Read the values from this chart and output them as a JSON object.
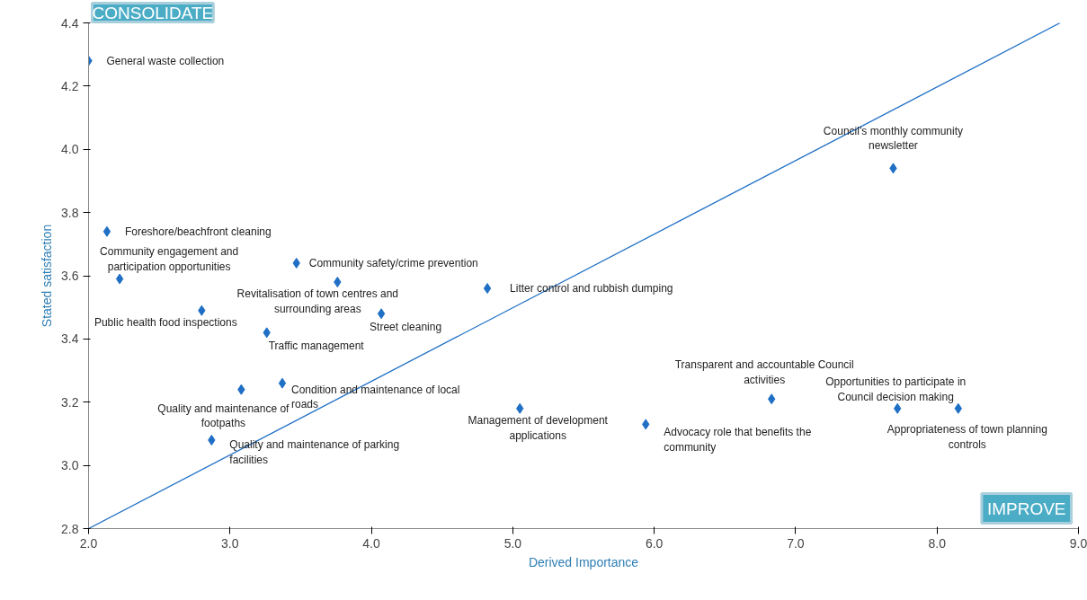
{
  "chart_data": {
    "type": "scatter",
    "xlabel": "Derived Importance",
    "ylabel": "Stated satisfaction",
    "xlim": [
      2.0,
      9.0
    ],
    "ylim": [
      2.8,
      4.4
    ],
    "xticks": [
      {
        "value": 2,
        "label": "2.0"
      },
      {
        "value": 3,
        "label": "3.0"
      },
      {
        "value": 4,
        "label": "4.0"
      },
      {
        "value": 5,
        "label": "5.0"
      },
      {
        "value": 6,
        "label": "6.0"
      },
      {
        "value": 7,
        "label": "7.0"
      },
      {
        "value": 8,
        "label": "8.0"
      },
      {
        "value": 9,
        "label": "9.0"
      }
    ],
    "yticks": [
      {
        "value": 2.8,
        "label": "2.8"
      },
      {
        "value": 3.0,
        "label": "3.0"
      },
      {
        "value": 3.2,
        "label": "3.2"
      },
      {
        "value": 3.4,
        "label": "3.4"
      },
      {
        "value": 3.6,
        "label": "3.6"
      },
      {
        "value": 3.8,
        "label": "3.8"
      },
      {
        "value": 4.0,
        "label": "4.0"
      },
      {
        "value": 4.2,
        "label": "4.2"
      },
      {
        "value": 4.4,
        "label": "4.4"
      }
    ],
    "grid": false,
    "series": [
      {
        "marker": "diamond",
        "color": "#1f6fc5",
        "x": [
          2.0,
          2.13,
          2.22,
          2.8,
          3.47,
          3.76,
          4.07,
          3.26,
          3.37,
          3.08,
          2.87,
          4.82,
          5.05,
          5.94,
          6.83,
          7.72,
          8.15,
          7.69
        ],
        "values": [
          4.28,
          3.74,
          3.59,
          3.49,
          3.64,
          3.58,
          3.48,
          3.42,
          3.26,
          3.24,
          3.08,
          3.56,
          3.18,
          3.13,
          3.21,
          3.18,
          3.18,
          3.94
        ]
      },
      {
        "type": "line",
        "color": "#1f6fc5",
        "x": [
          2.0,
          8.87
        ],
        "values": [
          2.8,
          4.4
        ]
      }
    ],
    "annotations": [
      {
        "text": "General waste collection",
        "x": 2.0,
        "y": 4.28
      },
      {
        "text": "Foreshore/beachfront cleaning",
        "x": 2.13,
        "y": 3.74
      },
      {
        "text": "Community engagement and participation opportunities",
        "x": 2.22,
        "y": 3.59
      },
      {
        "text": "Public health food inspections",
        "x": 2.8,
        "y": 3.49
      },
      {
        "text": "Community safety/crime prevention",
        "x": 3.47,
        "y": 3.64
      },
      {
        "text": "Revitalisation of town centres and surrounding areas",
        "x": 3.76,
        "y": 3.58
      },
      {
        "text": "Street cleaning",
        "x": 4.07,
        "y": 3.48
      },
      {
        "text": "Traffic management",
        "x": 3.26,
        "y": 3.42
      },
      {
        "text": "Condition and maintenance of local roads",
        "x": 3.37,
        "y": 3.26
      },
      {
        "text": "Quality and maintenance of footpaths",
        "x": 3.08,
        "y": 3.24
      },
      {
        "text": "Quality and maintenance of parking facilities",
        "x": 2.87,
        "y": 3.08
      },
      {
        "text": "Litter control and rubbish dumping",
        "x": 4.82,
        "y": 3.56
      },
      {
        "text": "Management of development applications",
        "x": 5.05,
        "y": 3.18
      },
      {
        "text": "Advocacy role that benefits the community",
        "x": 5.94,
        "y": 3.13
      },
      {
        "text": "Transparent and accountable Council activities",
        "x": 6.83,
        "y": 3.21
      },
      {
        "text": "Opportunities to participate in Council decision making",
        "x": 7.72,
        "y": 3.18
      },
      {
        "text": "Appropriateness of town planning controls",
        "x": 8.15,
        "y": 3.18
      },
      {
        "text": "Council’s monthly community newsletter",
        "x": 7.69,
        "y": 3.94
      },
      "CONSOLIDATE",
      "IMPROVE"
    ]
  }
}
